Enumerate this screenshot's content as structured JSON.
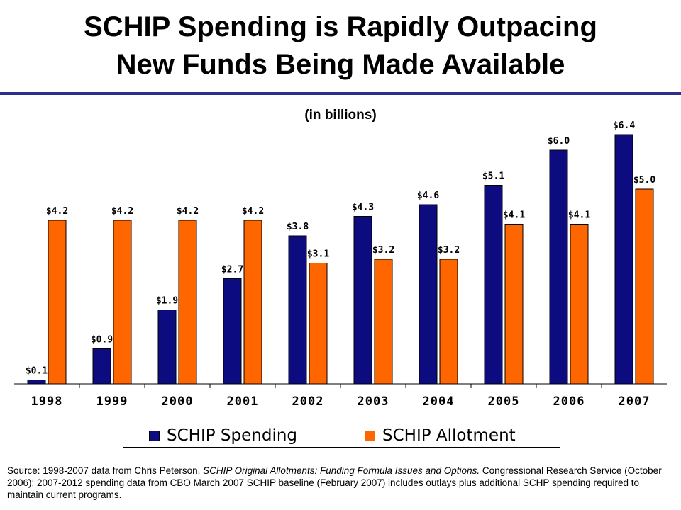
{
  "title": {
    "line1": "SCHIP Spending is Rapidly Outpacing",
    "line2": "New Funds Being Made Available"
  },
  "subtitle": "(in billions)",
  "colors": {
    "spending": "#0c0c80",
    "allotment": "#ff6600",
    "rule": "#2b2f8a"
  },
  "chart_data": {
    "type": "bar",
    "categories": [
      "1998",
      "1999",
      "2000",
      "2001",
      "2002",
      "2003",
      "2004",
      "2005",
      "2006",
      "2007"
    ],
    "series": [
      {
        "name": "SCHIP Spending",
        "values": [
          0.1,
          0.9,
          1.9,
          2.7,
          3.8,
          4.3,
          4.6,
          5.1,
          6.0,
          6.4
        ],
        "labels": [
          "$0.1",
          "$0.9",
          "$1.9",
          "$2.7",
          "$3.8",
          "$4.3",
          "$4.6",
          "$5.1",
          "$6.0",
          "$6.4"
        ]
      },
      {
        "name": "SCHIP Allotment",
        "values": [
          4.2,
          4.2,
          4.2,
          4.2,
          3.1,
          3.2,
          3.2,
          4.1,
          4.1,
          5.0
        ],
        "labels": [
          "$4.2",
          "$4.2",
          "$4.2",
          "$4.2",
          "$3.1",
          "$3.2",
          "$3.2",
          "$4.1",
          "$4.1",
          "$5.0"
        ]
      }
    ],
    "ylim": [
      0,
      7
    ],
    "grid": false,
    "legend_position": "bottom"
  },
  "source": {
    "prefix": "Source: 1998-2007 data from Chris Peterson. ",
    "italic": "SCHIP Original Allotments: Funding Formula Issues and Options.",
    "suffix": " Congressional Research Service (October 2006); 2007-2012 spending data from CBO March 2007 SCHIP baseline (February 2007) includes outlays plus additional SCHP spending required to maintain current programs."
  }
}
